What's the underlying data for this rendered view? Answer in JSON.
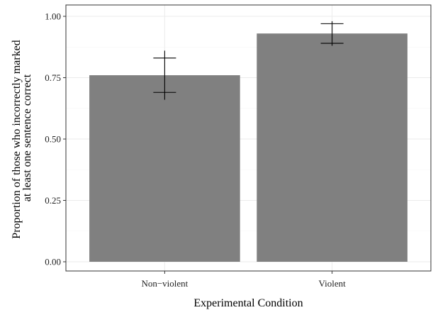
{
  "chart_data": {
    "type": "bar",
    "xlabel": "Experimental Condition",
    "ylabel_lines": [
      "Proportion of those who incorrectly marked",
      "at least one sentence correct"
    ],
    "categories": [
      "Non−violent",
      "Violent"
    ],
    "values": [
      0.76,
      0.93
    ],
    "error_bars": [
      {
        "upper": 0.86,
        "lower": 0.66,
        "inner_upper": 0.83,
        "inner_lower": 0.69
      },
      {
        "upper": 0.98,
        "lower": 0.88,
        "inner_upper": 0.97,
        "inner_lower": 0.89
      }
    ],
    "ylim": [
      0,
      1.05
    ],
    "yticks": [
      0.0,
      0.25,
      0.5,
      0.75,
      1.0
    ],
    "ytick_labels": [
      "0.00",
      "0.25",
      "0.50",
      "0.75",
      "1.00"
    ],
    "bar_color": "#808080",
    "grid": true,
    "theme": "bw"
  }
}
